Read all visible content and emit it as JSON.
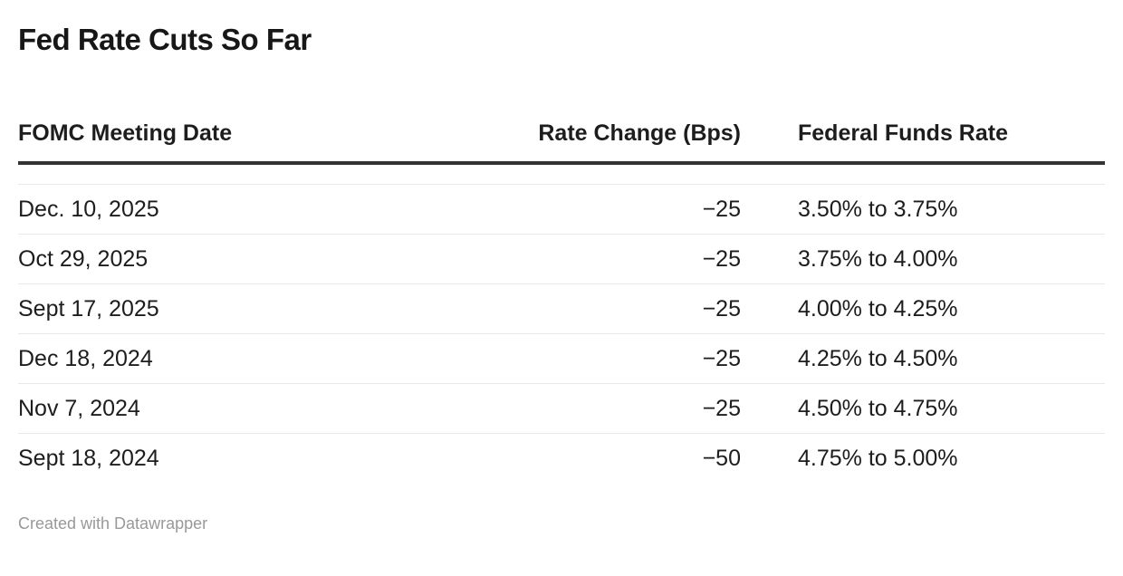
{
  "title": "Fed Rate Cuts So Far",
  "chart_data": {
    "type": "table",
    "title": "Fed Rate Cuts So Far",
    "columns": [
      "FOMC Meeting Date",
      "Rate Change (Bps)",
      "Federal Funds Rate"
    ],
    "rows": [
      [
        "Dec. 10, 2025",
        -25,
        "3.50% to 3.75%"
      ],
      [
        "Oct 29, 2025",
        -25,
        "3.75% to 4.00%"
      ],
      [
        "Sept 17, 2025",
        -25,
        "4.00% to 4.25%"
      ],
      [
        "Dec 18, 2024",
        -25,
        "4.25% to 4.50%"
      ],
      [
        "Nov 7, 2024",
        -25,
        "4.50% to 4.75%"
      ],
      [
        "Sept 18, 2024",
        -50,
        "4.75% to 5.00%"
      ]
    ]
  },
  "table": {
    "headers": {
      "date": "FOMC Meeting Date",
      "rate_change": "Rate Change (Bps)",
      "federal_funds_rate": "Federal Funds Rate"
    },
    "rows": [
      {
        "date": "Dec. 10, 2025",
        "rate_change": "−25",
        "federal_funds_rate": "3.50% to 3.75%"
      },
      {
        "date": "Oct 29, 2025",
        "rate_change": "−25",
        "federal_funds_rate": "3.75% to 4.00%"
      },
      {
        "date": "Sept 17, 2025",
        "rate_change": "−25",
        "federal_funds_rate": "4.00% to 4.25%"
      },
      {
        "date": "Dec 18, 2024",
        "rate_change": "−25",
        "federal_funds_rate": "4.25% to 4.50%"
      },
      {
        "date": "Nov 7, 2024",
        "rate_change": "−25",
        "federal_funds_rate": "4.50% to 4.75%"
      },
      {
        "date": "Sept 18, 2024",
        "rate_change": "−50",
        "federal_funds_rate": "4.75% to 5.00%"
      }
    ]
  },
  "footer": {
    "attribution": "Created with Datawrapper"
  },
  "colors": {
    "background": "#ffffff",
    "text": "#1d1d1d",
    "header_rule": "#333333",
    "row_divider": "#e9e9e9",
    "footer_text": "#999999"
  }
}
